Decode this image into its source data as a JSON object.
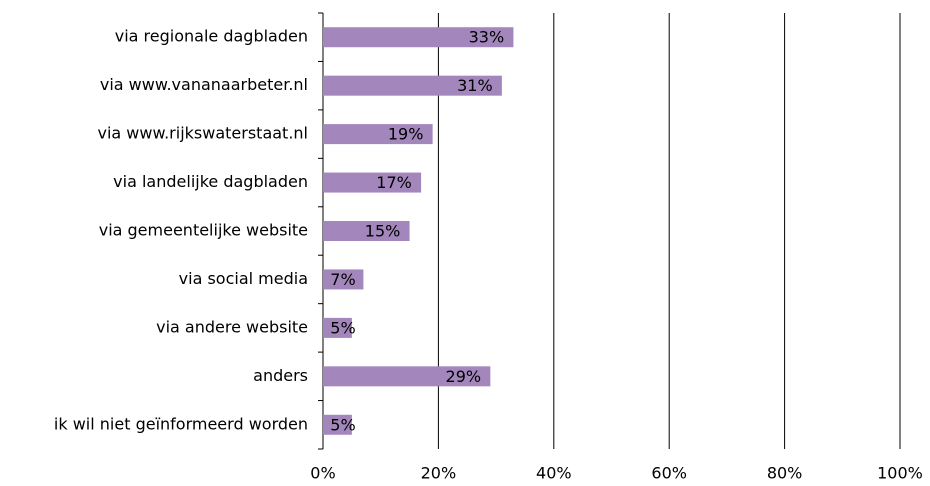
{
  "chart_data": {
    "type": "hbar",
    "categories": [
      "via regionale dagbladen",
      "via www.vananaarbeter.nl",
      "via www.rijkswaterstaat.nl",
      "via landelijke dagbladen",
      "via gemeentelijke website",
      "via social media",
      "via andere website",
      "anders",
      "ik wil niet geïnformeerd worden"
    ],
    "values": [
      33,
      31,
      19,
      17,
      15,
      7,
      5,
      29,
      5
    ],
    "value_labels": [
      "33%",
      "31%",
      "19%",
      "17%",
      "15%",
      "7%",
      "5%",
      "29%",
      "5%"
    ],
    "color": "#a386bb",
    "xlim": [
      0,
      100
    ],
    "xticks": [
      {
        "value": 0,
        "label": "0%"
      },
      {
        "value": 20,
        "label": "20%"
      },
      {
        "value": 40,
        "label": "40%"
      },
      {
        "value": 60,
        "label": "60%"
      },
      {
        "value": 80,
        "label": "80%"
      },
      {
        "value": 100,
        "label": "100%"
      }
    ],
    "grid": true
  }
}
